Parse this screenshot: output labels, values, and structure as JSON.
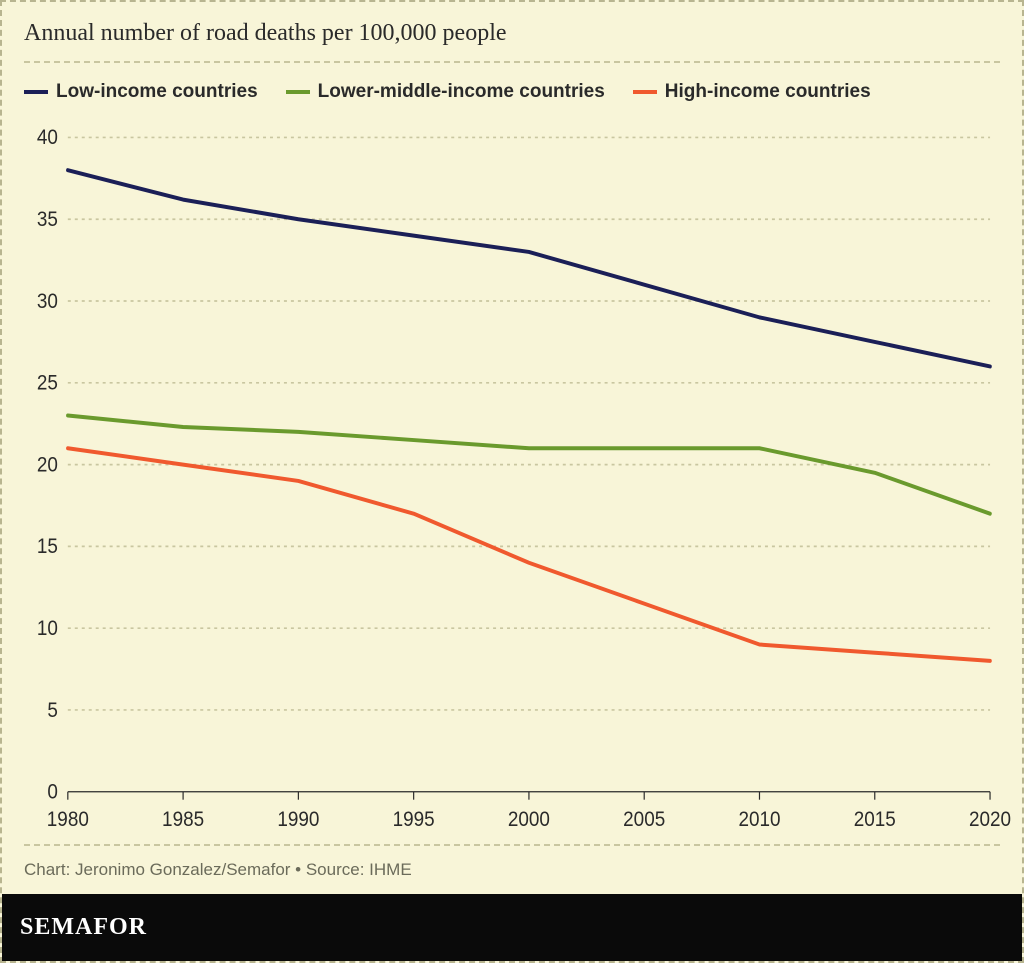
{
  "title": "Annual number of road deaths per 100,000 people",
  "source": "Chart: Jeronimo Gonzalez/Semafor • Source: IHME",
  "brand": "SEMAFOR",
  "chart": {
    "type": "line",
    "background_color": "#f8f5d8",
    "grid_color": "#c9c6a0",
    "axis_color": "#2a2a2a",
    "title_fontsize": 24,
    "tick_fontsize": 19,
    "legend_fontsize": 19,
    "line_width": 3.5,
    "xlim": [
      1980,
      2020
    ],
    "xticks": [
      1980,
      1985,
      1990,
      1995,
      2000,
      2005,
      2010,
      2015,
      2020
    ],
    "ylim": [
      0,
      40
    ],
    "yticks": [
      0,
      5,
      10,
      15,
      20,
      25,
      30,
      35,
      40
    ],
    "grid_dash": "3 4",
    "series": [
      {
        "key": "low_income",
        "label": "Low-income countries",
        "color": "#1b1f57",
        "x": [
          1980,
          1985,
          1990,
          1995,
          2000,
          2005,
          2010,
          2015,
          2020
        ],
        "y": [
          38,
          36.2,
          35,
          34,
          33,
          31,
          29,
          27.5,
          26
        ]
      },
      {
        "key": "lower_middle_income",
        "label": "Lower-middle-income countries",
        "color": "#6a9a2d",
        "x": [
          1980,
          1985,
          1990,
          1995,
          2000,
          2005,
          2010,
          2015,
          2020
        ],
        "y": [
          23,
          22.3,
          22,
          21.5,
          21,
          21,
          21,
          19.5,
          17
        ]
      },
      {
        "key": "high_income",
        "label": "High-income countries",
        "color": "#f0592e",
        "x": [
          1980,
          1985,
          1990,
          1995,
          2000,
          2005,
          2010,
          2015,
          2020
        ],
        "y": [
          21,
          20,
          19,
          17,
          14,
          11.5,
          9,
          8.5,
          8
        ]
      }
    ]
  }
}
